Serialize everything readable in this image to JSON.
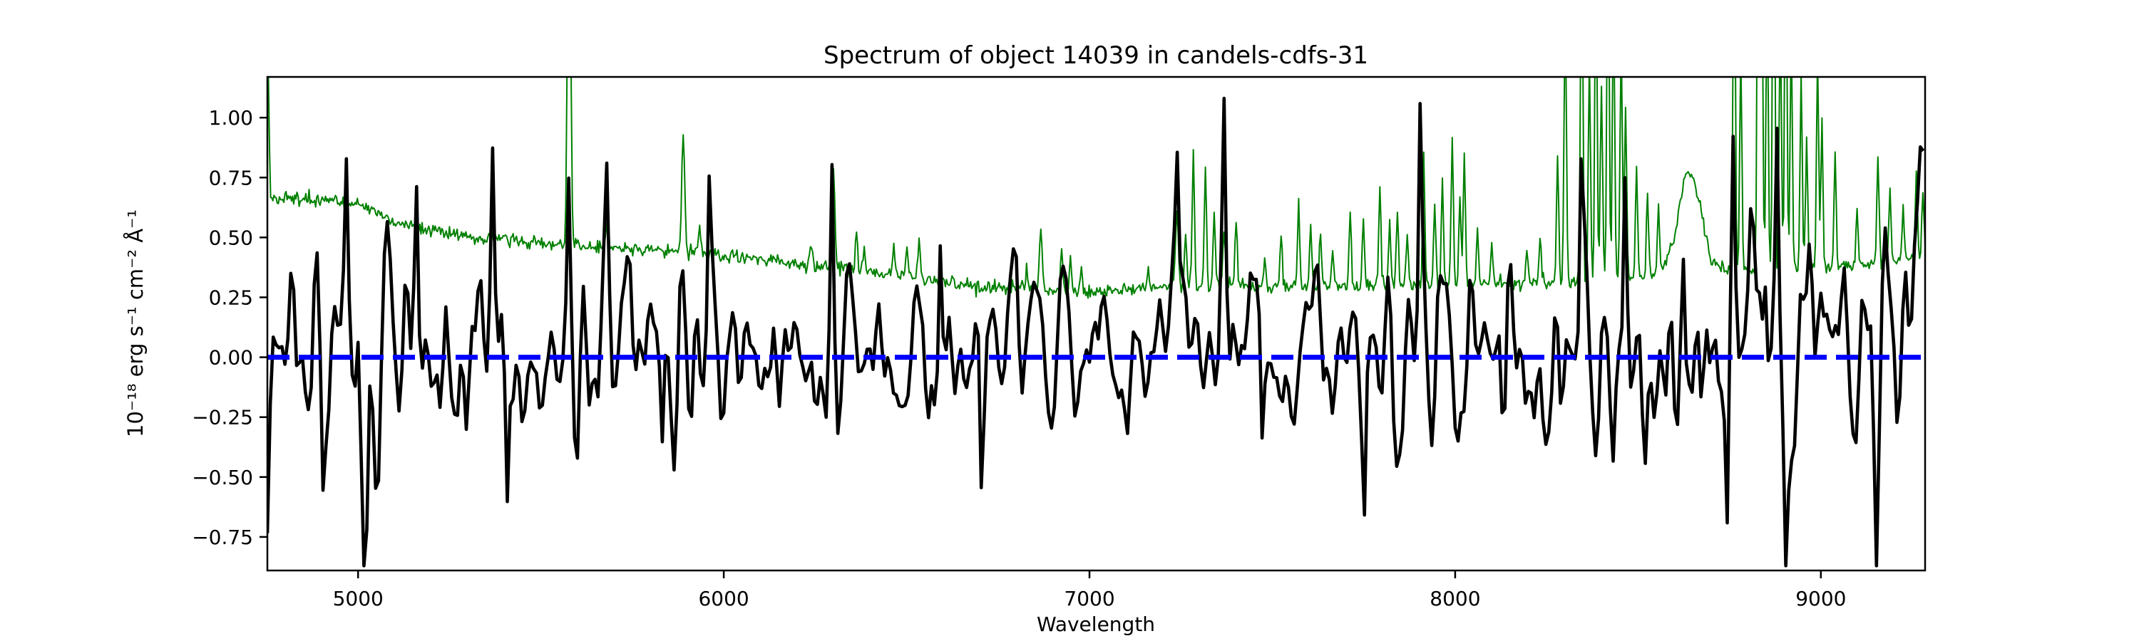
{
  "figure": {
    "background": "#ffffff",
    "frame_color": "#000000"
  },
  "chart_data": {
    "type": "line",
    "title": "Spectrum of object 14039 in candels-cdfs-31",
    "xlabel": "Wavelength",
    "ylabel": "10⁻¹⁸ erg s⁻¹ cm⁻² Å⁻¹",
    "xlim": [
      4752,
      9285
    ],
    "ylim": [
      -0.89,
      1.17
    ],
    "grid": false,
    "legend": null,
    "x_ticks": [
      5000,
      6000,
      7000,
      8000,
      9000
    ],
    "x_tick_labels": [
      "5000",
      "6000",
      "7000",
      "8000",
      "9000"
    ],
    "y_ticks": [
      1.0,
      0.75,
      0.5,
      0.25,
      0.0,
      -0.25,
      -0.5,
      -0.75
    ],
    "y_tick_labels": [
      "1.00",
      "0.75",
      "0.50",
      "0.25",
      "0.00",
      "−0.25",
      "−0.50",
      "−0.75"
    ],
    "series": [
      {
        "name": "noise-spectrum",
        "legend": null,
        "color": "#008000",
        "linewidth": 2,
        "sample_step": 3,
        "seed": 7,
        "jitter": 0.013,
        "baseline_keypoints": [
          [
            4752,
            1.45
          ],
          [
            4760,
            0.67
          ],
          [
            4790,
            0.655
          ],
          [
            4840,
            0.665
          ],
          [
            4880,
            0.65
          ],
          [
            4920,
            0.66
          ],
          [
            4960,
            0.65
          ],
          [
            5000,
            0.64
          ],
          [
            5050,
            0.6
          ],
          [
            5100,
            0.565
          ],
          [
            5150,
            0.545
          ],
          [
            5200,
            0.53
          ],
          [
            5300,
            0.505
          ],
          [
            5400,
            0.49
          ],
          [
            5500,
            0.475
          ],
          [
            5600,
            0.465
          ],
          [
            5700,
            0.455
          ],
          [
            5800,
            0.45
          ],
          [
            5900,
            0.44
          ],
          [
            6000,
            0.425
          ],
          [
            6100,
            0.41
          ],
          [
            6200,
            0.39
          ],
          [
            6300,
            0.375
          ],
          [
            6400,
            0.355
          ],
          [
            6500,
            0.34
          ],
          [
            6600,
            0.315
          ],
          [
            6700,
            0.295
          ],
          [
            6800,
            0.285
          ],
          [
            6900,
            0.28
          ],
          [
            7000,
            0.275
          ],
          [
            7100,
            0.28
          ],
          [
            7200,
            0.29
          ],
          [
            7300,
            0.3
          ],
          [
            7400,
            0.3
          ],
          [
            7500,
            0.295
          ],
          [
            7600,
            0.295
          ],
          [
            7700,
            0.3
          ],
          [
            7800,
            0.3
          ],
          [
            7900,
            0.3
          ],
          [
            8000,
            0.3
          ],
          [
            8100,
            0.305
          ],
          [
            8200,
            0.31
          ],
          [
            8300,
            0.32
          ],
          [
            8400,
            0.33
          ],
          [
            8500,
            0.33
          ],
          [
            8560,
            0.345
          ],
          [
            8600,
            0.5
          ],
          [
            8630,
            0.78
          ],
          [
            8660,
            0.72
          ],
          [
            8700,
            0.4
          ],
          [
            8750,
            0.36
          ],
          [
            8800,
            0.36
          ],
          [
            8900,
            0.36
          ],
          [
            9000,
            0.365
          ],
          [
            9100,
            0.38
          ],
          [
            9200,
            0.4
          ],
          [
            9285,
            0.42
          ]
        ],
        "spikes": [
          [
            5577,
            2.0,
            4
          ],
          [
            5682,
            0.12,
            4
          ],
          [
            5890,
            0.5,
            4
          ],
          [
            5935,
            0.1,
            3
          ],
          [
            6240,
            0.08,
            3
          ],
          [
            6300,
            0.42,
            4
          ],
          [
            6364,
            0.18,
            3
          ],
          [
            6385,
            0.1,
            3
          ],
          [
            6465,
            0.12,
            3
          ],
          [
            6500,
            0.1,
            3
          ],
          [
            6533,
            0.16,
            3
          ],
          [
            6827,
            0.1,
            3
          ],
          [
            6867,
            0.25,
            4
          ],
          [
            6923,
            0.18,
            3
          ],
          [
            6949,
            0.14,
            3
          ],
          [
            6978,
            0.1,
            3
          ],
          [
            7160,
            0.08,
            3
          ],
          [
            7240,
            0.3,
            4
          ],
          [
            7262,
            0.22,
            3
          ],
          [
            7284,
            0.55,
            3
          ],
          [
            7316,
            0.5,
            3
          ],
          [
            7341,
            0.3,
            3
          ],
          [
            7369,
            0.22,
            3
          ],
          [
            7402,
            0.28,
            3
          ],
          [
            7480,
            0.12,
            3
          ],
          [
            7524,
            0.22,
            3
          ],
          [
            7571,
            0.35,
            3
          ],
          [
            7605,
            0.25,
            3
          ],
          [
            7632,
            0.2,
            3
          ],
          [
            7664,
            0.15,
            3
          ],
          [
            7712,
            0.32,
            3
          ],
          [
            7750,
            0.28,
            3
          ],
          [
            7794,
            0.42,
            3
          ],
          [
            7821,
            0.28,
            3
          ],
          [
            7841,
            0.3,
            3
          ],
          [
            7870,
            0.2,
            3
          ],
          [
            7913,
            0.55,
            3
          ],
          [
            7944,
            0.35,
            3
          ],
          [
            7964,
            0.45,
            3
          ],
          [
            7993,
            0.62,
            3
          ],
          [
            8014,
            0.4,
            3
          ],
          [
            8026,
            0.55,
            3
          ],
          [
            8062,
            0.25,
            3
          ],
          [
            8101,
            0.16,
            3
          ],
          [
            8196,
            0.14,
            3
          ],
          [
            8233,
            0.2,
            3
          ],
          [
            8280,
            0.5,
            3
          ],
          [
            8300,
            1.2,
            3
          ],
          [
            8346,
            1.6,
            3
          ],
          [
            8367,
            0.9,
            3
          ],
          [
            8384,
            1.4,
            3
          ],
          [
            8401,
            0.8,
            3
          ],
          [
            8417,
            1.6,
            3
          ],
          [
            8432,
            1.2,
            3
          ],
          [
            8455,
            1.0,
            3
          ],
          [
            8467,
            0.7,
            3
          ],
          [
            8495,
            0.45,
            3
          ],
          [
            8525,
            0.35,
            3
          ],
          [
            8555,
            0.3,
            3
          ],
          [
            8763,
            1.6,
            3
          ],
          [
            8780,
            0.9,
            3
          ],
          [
            8829,
            2.0,
            3
          ],
          [
            8838,
            1.5,
            3
          ],
          [
            8852,
            1.2,
            3
          ],
          [
            8870,
            2.0,
            3
          ],
          [
            8888,
            1.1,
            3
          ],
          [
            8905,
            1.6,
            3
          ],
          [
            8920,
            1.0,
            3
          ],
          [
            8945,
            0.8,
            3
          ],
          [
            8960,
            0.55,
            3
          ],
          [
            8990,
            0.9,
            3
          ],
          [
            9002,
            0.6,
            3
          ],
          [
            9040,
            0.48,
            3
          ],
          [
            9100,
            0.25,
            3
          ],
          [
            9157,
            0.45,
            3
          ],
          [
            9190,
            0.3,
            3
          ],
          [
            9225,
            0.22,
            3
          ],
          [
            9260,
            0.35,
            3
          ],
          [
            9280,
            0.25,
            3
          ]
        ]
      },
      {
        "name": "flux",
        "legend": null,
        "color": "#000000",
        "linewidth": 4.6,
        "sample_step": 8,
        "seed": 42,
        "noise_gain": 1.63,
        "clamp": [
          -0.87,
          1.12
        ],
        "noise_std_keypoints": [
          [
            4752,
            0.25
          ],
          [
            5000,
            0.235
          ],
          [
            5400,
            0.22
          ],
          [
            5800,
            0.205
          ],
          [
            6200,
            0.195
          ],
          [
            6600,
            0.185
          ],
          [
            7000,
            0.18
          ],
          [
            7400,
            0.195
          ],
          [
            7800,
            0.2
          ],
          [
            8200,
            0.21
          ],
          [
            8600,
            0.22
          ],
          [
            9000,
            0.235
          ],
          [
            9285,
            0.26
          ]
        ],
        "spikes": [
          [
            4967,
            0.75,
            5
          ],
          [
            5160,
            0.5,
            5
          ],
          [
            5366,
            0.72,
            5
          ],
          [
            5577,
            0.7,
            5
          ],
          [
            5680,
            0.5,
            5
          ],
          [
            5960,
            0.62,
            5
          ],
          [
            6295,
            0.72,
            5
          ],
          [
            6590,
            0.5,
            5
          ],
          [
            7240,
            0.55,
            5
          ],
          [
            7370,
            0.82,
            5
          ],
          [
            7905,
            1.02,
            5
          ],
          [
            8345,
            0.8,
            5
          ],
          [
            8465,
            0.75,
            5
          ],
          [
            8620,
            0.55,
            5
          ],
          [
            8757,
            0.7,
            5
          ],
          [
            8845,
            0.6,
            5
          ],
          [
            8883,
            0.95,
            5
          ],
          [
            9278,
            0.72,
            6
          ],
          [
            4905,
            -0.6,
            5
          ],
          [
            5015,
            -0.62,
            5
          ],
          [
            5410,
            -0.66,
            5
          ],
          [
            5835,
            -0.52,
            5
          ],
          [
            6700,
            -0.5,
            5
          ],
          [
            7475,
            -0.55,
            5
          ],
          [
            7755,
            -0.72,
            5
          ],
          [
            8742,
            -0.7,
            5
          ],
          [
            8900,
            -0.8,
            5
          ],
          [
            9150,
            -0.52,
            5
          ]
        ]
      },
      {
        "name": "zero-reference",
        "legend": null,
        "type": "hline",
        "y": 0,
        "color": "#0000ff",
        "linewidth": 7,
        "dash": [
          31,
          13
        ]
      }
    ]
  }
}
